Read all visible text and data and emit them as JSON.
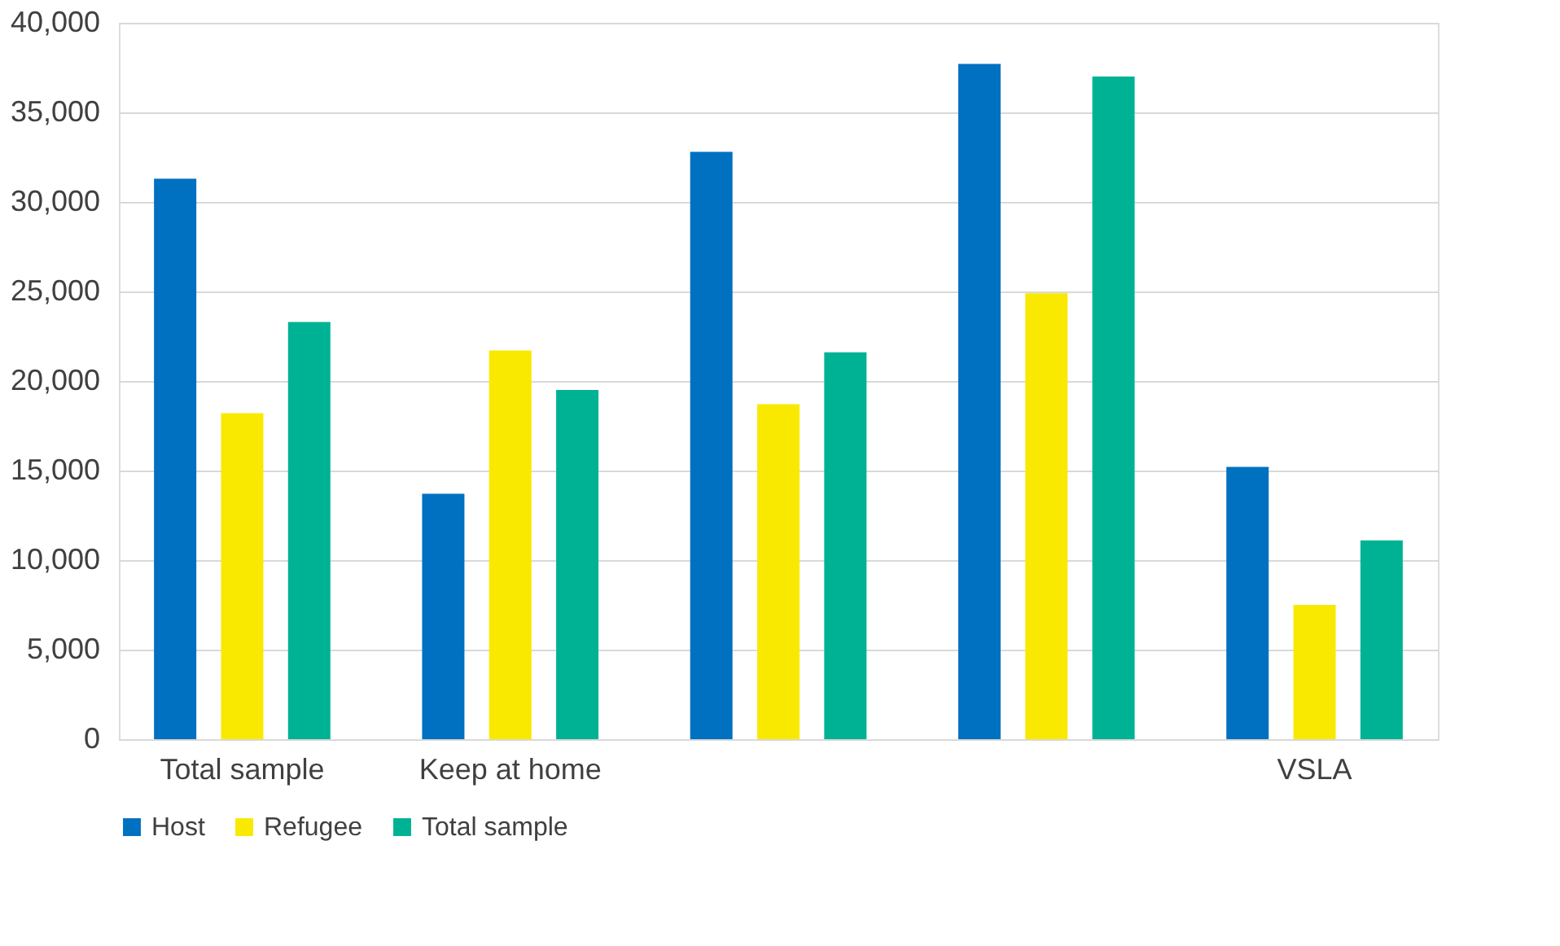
{
  "chart_data": {
    "type": "bar",
    "categories": [
      "Total sample",
      "Keep at home",
      null,
      null,
      "VSLA"
    ],
    "series": [
      {
        "name": "Host",
        "color": "#0070c0",
        "values": [
          31300,
          13700,
          32800,
          37700,
          15200
        ]
      },
      {
        "name": "Refugee",
        "color": "#f9e900",
        "values": [
          18200,
          21700,
          18700,
          24900,
          7500
        ]
      },
      {
        "name": "Total sample",
        "color": "#00b294",
        "values": [
          23300,
          19500,
          21600,
          37000,
          11100
        ]
      }
    ],
    "ylim": [
      0,
      40000
    ],
    "yticks": [
      0,
      {
        "value": 5000,
        "label": "5,000"
      },
      {
        "value": 10000,
        "label": "10,000"
      },
      {
        "value": 15000,
        "label": "15,000"
      },
      {
        "value": 20000,
        "label": "20,000"
      },
      {
        "value": 25000,
        "label": "25,000"
      },
      {
        "value": 30000,
        "label": "30,000"
      },
      {
        "value": 35000,
        "label": "35,000"
      },
      {
        "value": 40000,
        "label": "40,000"
      }
    ],
    "grid": "y",
    "legend": "bottom"
  }
}
